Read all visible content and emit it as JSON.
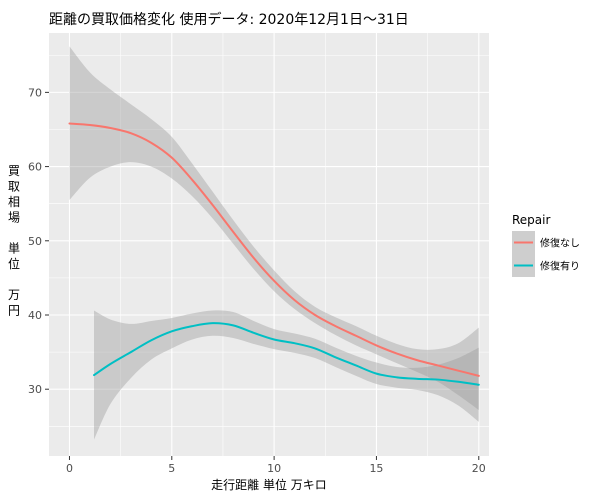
{
  "chart_data": {
    "type": "line",
    "title": "距離の買取価格変化 使用データ: 2020年12月1日～31日",
    "xlabel": "走行距離 単位 万キロ",
    "ylabel": "買取相場 単位 万円",
    "xlim": [
      -1,
      20.5
    ],
    "ylim": [
      21,
      78
    ],
    "x_ticks": [
      0,
      5,
      10,
      15,
      20
    ],
    "y_ticks": [
      30,
      40,
      50,
      60,
      70
    ],
    "grid": true,
    "legend": {
      "title": "Repair",
      "position": "right"
    },
    "series": [
      {
        "name": "修復なし",
        "color": "#F8766D",
        "x": [
          0,
          1,
          2,
          3,
          4,
          5,
          6,
          7,
          8,
          9,
          10,
          11,
          12,
          13,
          14,
          15,
          16,
          17,
          18,
          19,
          20
        ],
        "y": [
          65.8,
          65.6,
          65.2,
          64.5,
          63.2,
          61.2,
          58.2,
          54.8,
          51.2,
          47.7,
          44.6,
          42.0,
          40.0,
          38.5,
          37.2,
          35.9,
          34.8,
          33.9,
          33.2,
          32.5,
          31.8
        ],
        "lower": [
          55.5,
          58.5,
          60.0,
          60.6,
          60.0,
          58.4,
          56.0,
          53.0,
          49.6,
          46.2,
          43.2,
          40.8,
          38.9,
          37.3,
          35.9,
          34.7,
          33.5,
          32.3,
          31.0,
          29.2,
          27.2
        ],
        "upper": [
          76.2,
          72.7,
          70.4,
          68.4,
          66.4,
          64.0,
          60.4,
          56.6,
          52.8,
          49.2,
          46.0,
          43.2,
          41.1,
          39.7,
          38.5,
          37.2,
          36.1,
          35.4,
          35.4,
          36.2,
          38.3
        ]
      },
      {
        "name": "修復有り",
        "color": "#00BFC4",
        "x": [
          1.2,
          2,
          3,
          4,
          5,
          6,
          7,
          8,
          9,
          10,
          11,
          12,
          13,
          14,
          15,
          16,
          17,
          18,
          19,
          20
        ],
        "y": [
          31.9,
          33.4,
          35.0,
          36.6,
          37.8,
          38.5,
          38.9,
          38.6,
          37.6,
          36.7,
          36.2,
          35.5,
          34.3,
          33.2,
          32.1,
          31.6,
          31.4,
          31.3,
          31.0,
          30.6
        ],
        "lower": [
          23.2,
          28.0,
          31.5,
          34.0,
          35.5,
          36.7,
          37.2,
          36.9,
          36.1,
          35.4,
          34.9,
          34.2,
          33.0,
          31.8,
          30.7,
          30.2,
          29.9,
          29.2,
          27.8,
          25.6
        ],
        "upper": [
          40.6,
          39.4,
          38.8,
          39.2,
          39.6,
          40.2,
          40.6,
          40.4,
          39.2,
          38.1,
          37.5,
          36.8,
          35.6,
          34.5,
          33.6,
          33.0,
          32.9,
          33.3,
          34.2,
          35.6
        ]
      }
    ]
  }
}
